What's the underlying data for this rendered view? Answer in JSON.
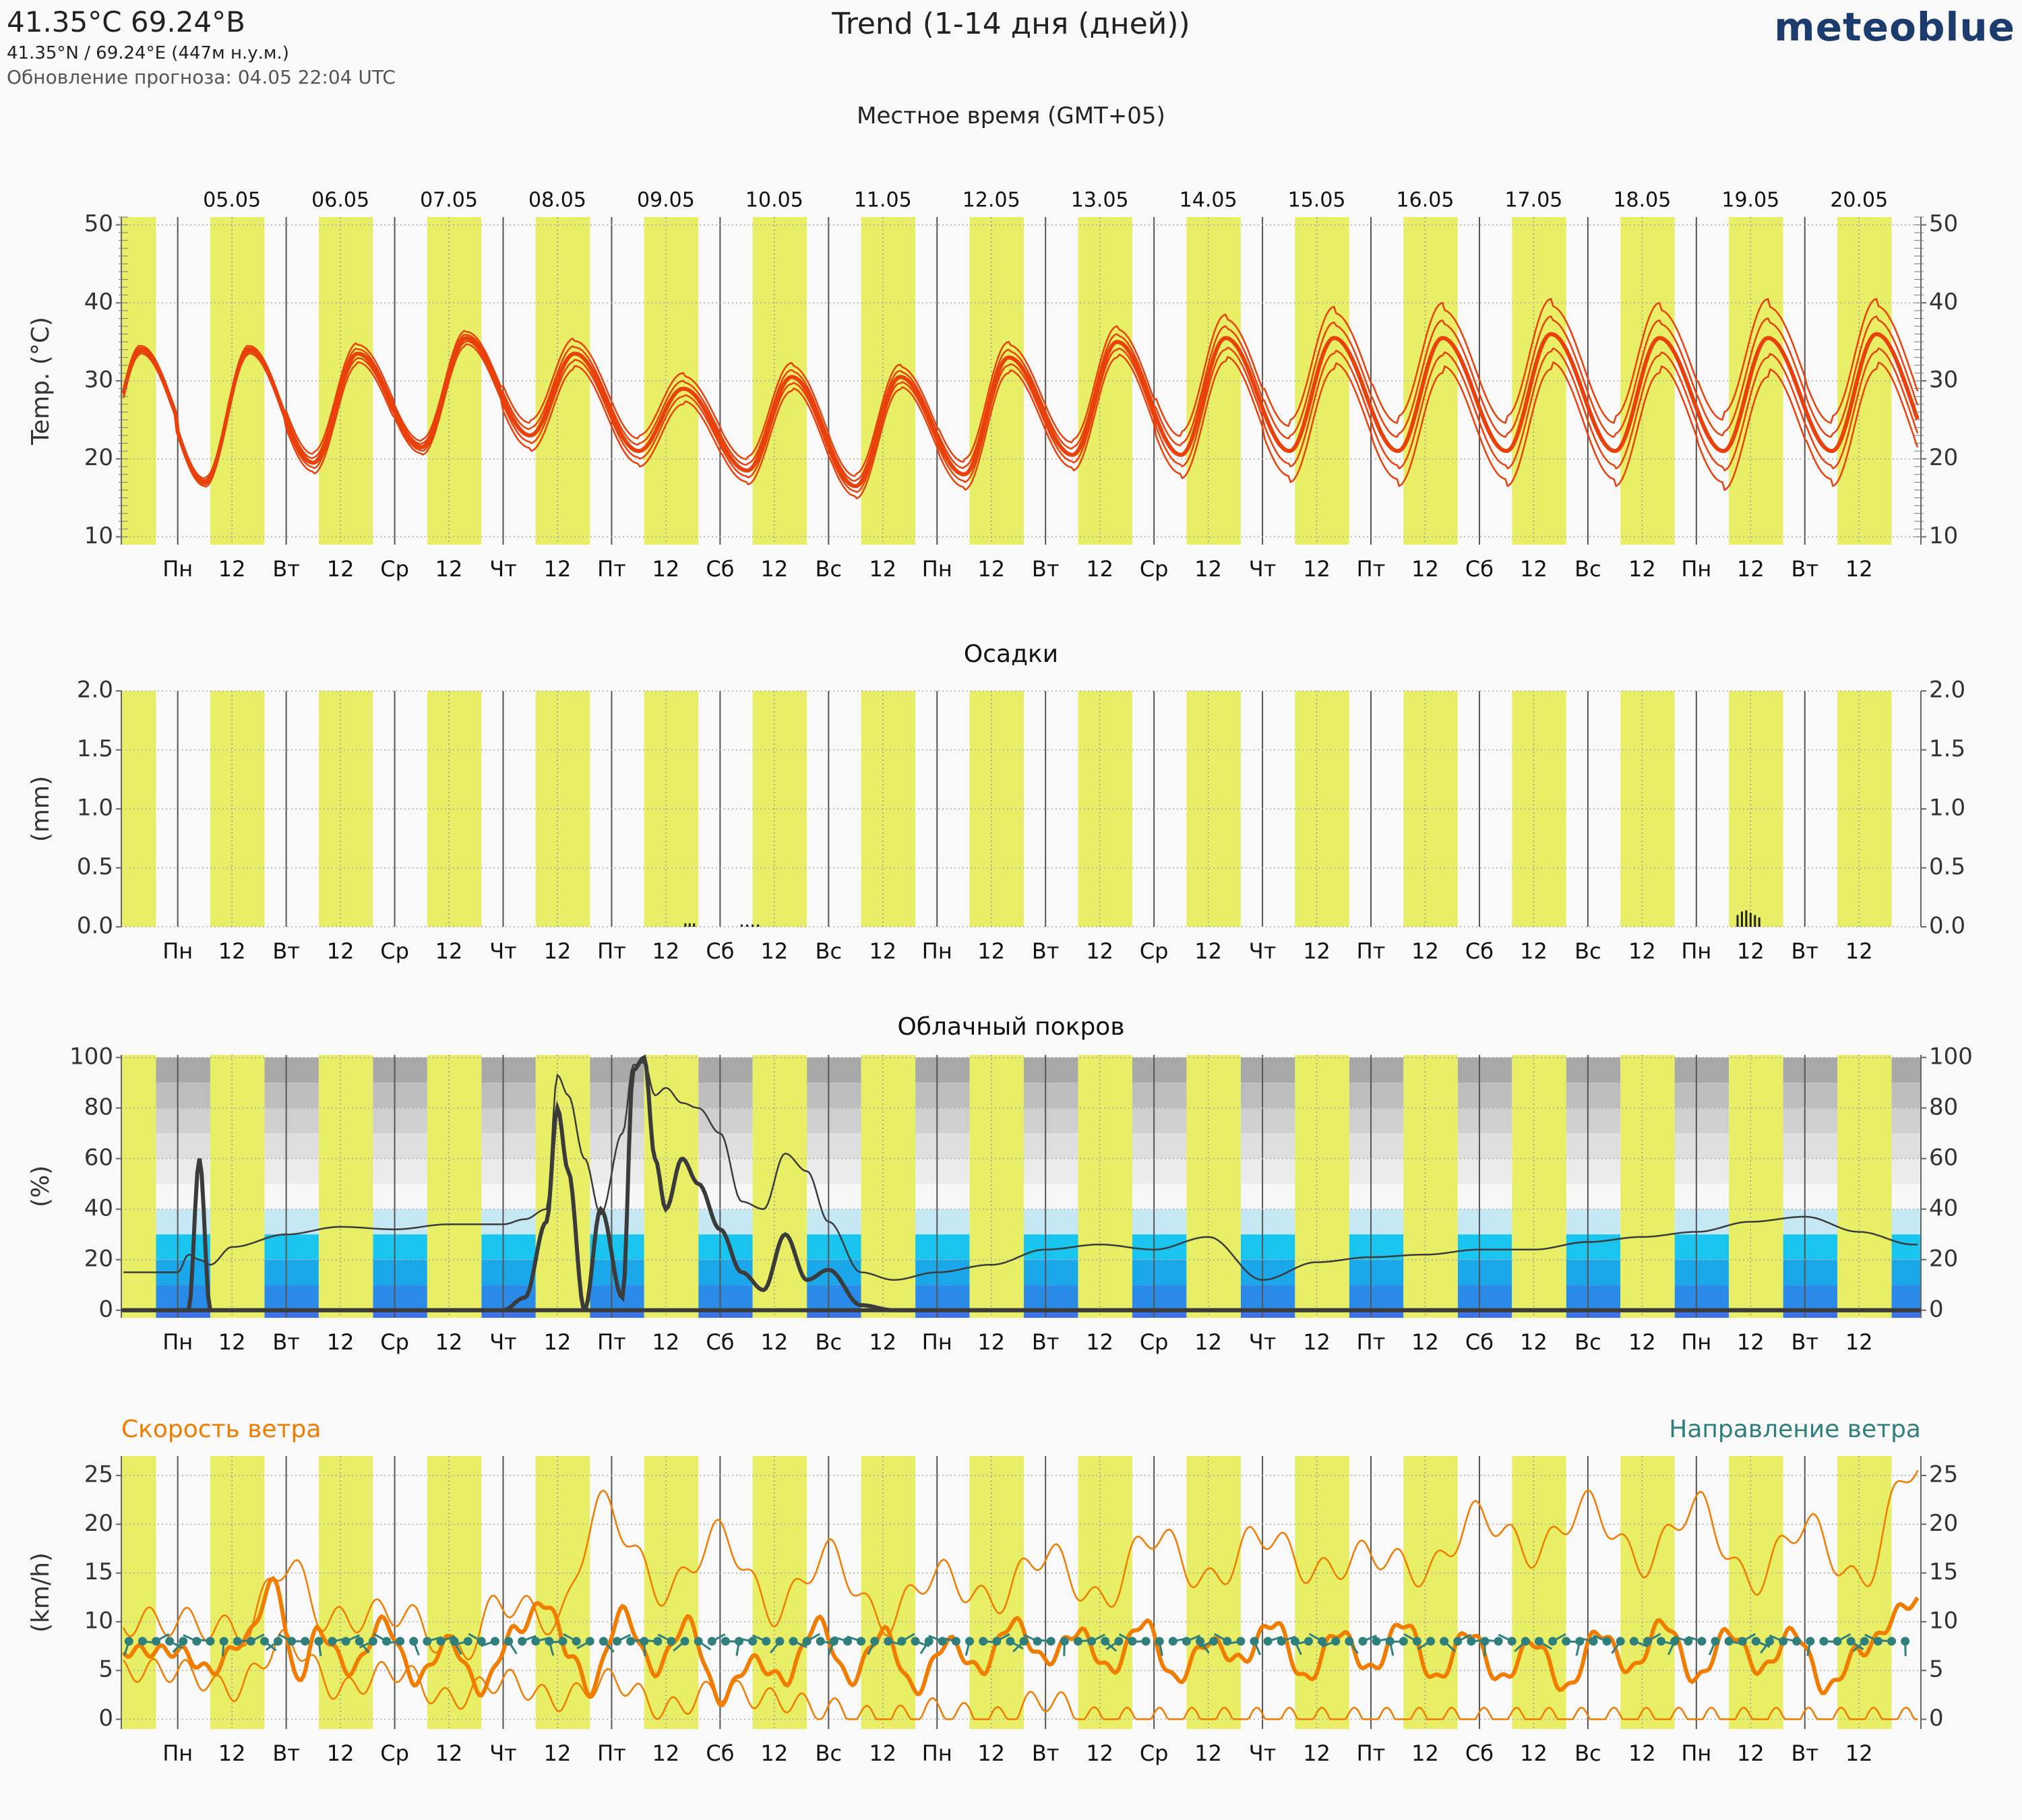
{
  "header": {
    "location": "41.35°C 69.24°В",
    "coordinates": "41.35°N / 69.24°E (447м н.у.м.)",
    "updated": "Обновление прогноза: 04.05 22:04 UTC",
    "title": "Trend (1-14 дня (дней))",
    "logo": "meteoblue",
    "local_time": "Местное время (GMT+05)"
  },
  "colors": {
    "day_band": "#e8ef66",
    "night_band": "#f9f9f9",
    "temperature": "#e8410c",
    "wind_speed": "#f07c00",
    "wind_direction": "#2f7f7c",
    "cloud_line": "#3b3b3b",
    "precip": "#222222"
  },
  "dates": [
    "05.05",
    "06.05",
    "07.05",
    "08.05",
    "09.05",
    "10.05",
    "11.05",
    "12.05",
    "13.05",
    "14.05",
    "15.05",
    "16.05",
    "17.05",
    "18.05",
    "19.05",
    "20.05"
  ],
  "weekdays": [
    "Пн",
    "Вт",
    "Ср",
    "Чт",
    "Пт",
    "Сб",
    "Вс",
    "Пн",
    "Вт",
    "Ср",
    "Чт",
    "Пт",
    "Сб",
    "Вс",
    "Пн",
    "Вт"
  ],
  "noon_label": "12",
  "chart_data": [
    {
      "type": "line",
      "title": "",
      "ylabel": "Temp. (°C)",
      "ylim": [
        9,
        51
      ],
      "yticks": [
        10,
        20,
        30,
        40,
        50
      ],
      "grid": true,
      "x_unit": "days since 05.05 00:00 local",
      "daily_max": [
        34,
        33.5,
        35.5,
        33.5,
        29,
        30.5,
        30.5,
        33,
        35,
        35.5,
        35.5,
        35.5,
        36,
        35.5,
        35.5,
        36
      ],
      "daily_min": [
        17,
        19.5,
        21.5,
        23,
        21,
        18.5,
        16.5,
        18,
        20.5,
        20.5,
        21,
        21,
        21,
        21,
        21,
        21
      ],
      "spread": [
        0.6,
        1.4,
        1.0,
        2.0,
        2.0,
        1.8,
        1.6,
        2.0,
        2.0,
        3.0,
        4.0,
        4.5,
        4.5,
        4.5,
        5.0,
        4.5
      ]
    },
    {
      "type": "bar",
      "title": "Осадки",
      "ylabel": "(mm)",
      "ylim": [
        0,
        2
      ],
      "yticks": [
        0.0,
        0.5,
        1.0,
        1.5,
        2.0
      ],
      "ytick_labels": [
        "0.0",
        "0.5",
        "1.0",
        "1.5",
        "2.0"
      ],
      "x": [
        4.68,
        4.72,
        4.76,
        5.2,
        5.25,
        5.3,
        5.35,
        14.38,
        14.42,
        14.46,
        14.5,
        14.54,
        14.58
      ],
      "values": [
        0.03,
        0.03,
        0.03,
        0.02,
        0.02,
        0.02,
        0.02,
        0.1,
        0.13,
        0.14,
        0.12,
        0.1,
        0.08
      ]
    },
    {
      "type": "line",
      "title": "Облачный покров",
      "ylabel": "(%)",
      "ylim": [
        -3,
        101
      ],
      "yticks": [
        0,
        20,
        40,
        60,
        80,
        100
      ],
      "x": [
        0,
        0.1,
        0.2,
        0.3,
        0.5,
        1.0,
        1.5,
        2.0,
        2.5,
        3.0,
        3.2,
        3.4,
        3.5,
        3.6,
        3.75,
        3.9,
        4.1,
        4.2,
        4.3,
        4.4,
        4.5,
        4.65,
        4.8,
        5.0,
        5.2,
        5.4,
        5.6,
        5.8,
        6.0,
        6.3,
        6.6,
        7.0,
        7.5,
        8.0,
        8.5,
        9.0,
        9.5,
        10.0,
        10.5,
        11.0,
        11.5,
        12.0,
        12.5,
        13.0,
        13.5,
        14.0,
        14.5,
        15.0,
        15.5,
        16.0
      ],
      "series": [
        {
          "values": [
            0,
            0,
            60,
            0,
            0,
            0,
            0,
            0,
            0,
            0,
            5,
            35,
            80,
            55,
            0,
            40,
            5,
            95,
            100,
            60,
            40,
            60,
            50,
            32,
            15,
            8,
            30,
            12,
            16,
            2,
            0,
            0,
            0,
            0,
            0,
            0,
            0,
            0,
            0,
            0,
            0,
            0,
            0,
            0,
            0,
            0,
            0,
            0,
            0,
            0
          ]
        },
        {
          "values": [
            15,
            22,
            20,
            18,
            25,
            30,
            33,
            32,
            34,
            34,
            36,
            40,
            93,
            85,
            60,
            38,
            70,
            97,
            98,
            85,
            88,
            82,
            80,
            70,
            43,
            40,
            62,
            55,
            35,
            15,
            12,
            15,
            18,
            24,
            26,
            24,
            29,
            12,
            19,
            21,
            22,
            24,
            24,
            27,
            29,
            31,
            35,
            37,
            31,
            26
          ]
        }
      ]
    },
    {
      "type": "line",
      "title": "",
      "ylabel": "(km/h)",
      "ylim": [
        -1,
        27
      ],
      "yticks": [
        0,
        5,
        10,
        15,
        20,
        25
      ],
      "annotations": [
        "Скорость ветра",
        "Направление ветра"
      ],
      "series": [
        {
          "name": "Скорость ветра",
          "x": [
            0,
            0.3,
            0.6,
            0.9,
            1.1,
            1.3,
            1.6,
            1.9,
            2.2,
            2.5,
            2.8,
            3.1,
            3.4,
            3.6,
            3.8,
            4.1,
            4.4,
            4.7,
            5.0,
            5.3,
            5.6,
            5.9,
            6.2,
            6.5,
            6.8,
            7.1,
            7.4,
            7.7,
            8.0,
            8.3,
            8.6,
            8.9,
            9.2,
            9.5,
            9.8,
            10.1,
            10.4,
            10.7,
            11.0,
            11.3,
            11.6,
            11.9,
            12.2,
            12.5,
            12.8,
            13.1,
            13.4,
            13.7,
            14.0,
            14.3,
            14.6,
            14.9,
            15.2,
            15.5,
            16.0
          ],
          "values": [
            7,
            5,
            8,
            14,
            4,
            9,
            5,
            10,
            4,
            8,
            3,
            9,
            12,
            7,
            3,
            11,
            5,
            10,
            2,
            6,
            4,
            10,
            4,
            9,
            3,
            8,
            5,
            10,
            6,
            9,
            5,
            10,
            4,
            8,
            6,
            10,
            4,
            9,
            5,
            10,
            4,
            9,
            4,
            8,
            3,
            9,
            5,
            10,
            4,
            9,
            5,
            9,
            3,
            7,
            12
          ]
        },
        {
          "name": "max",
          "x": [
            0,
            0.6,
            1.0,
            1.4,
            2.0,
            2.6,
            3.0,
            3.5,
            3.9,
            4.5,
            5.0,
            5.5,
            6.0,
            6.5,
            7.0,
            7.5,
            8.0,
            8.5,
            9.0,
            9.5,
            10.0,
            10.5,
            11.0,
            11.5,
            12.0,
            12.5,
            13.0,
            13.5,
            14.0,
            14.5,
            15.0,
            15.5,
            16.0
          ],
          "values": [
            10,
            9,
            16,
            10,
            11,
            7,
            12,
            10,
            22,
            13,
            19,
            11,
            17,
            10,
            15,
            12,
            17,
            12,
            19,
            14,
            19,
            15,
            17,
            15,
            21,
            17,
            22,
            16,
            22,
            14,
            20,
            14,
            26
          ]
        },
        {
          "name": "min",
          "x": [
            0,
            0.5,
            1.0,
            1.5,
            2.0,
            2.5,
            3.0,
            3.5,
            4.0,
            4.5,
            5.0,
            5.5,
            6.0,
            6.5,
            7.0,
            7.5,
            8.0,
            8.5,
            9.0,
            9.5,
            10.0,
            10.5,
            11.0,
            11.5,
            12.0,
            12.5,
            13.0,
            13.5,
            14.0,
            14.5,
            15.0,
            15.5,
            16.0
          ],
          "values": [
            5,
            3,
            8,
            3,
            5,
            2,
            4,
            2,
            4,
            1,
            3,
            2,
            1,
            0,
            1,
            0,
            2,
            0,
            0,
            0,
            0,
            0,
            0,
            0,
            0,
            0,
            0,
            0,
            0,
            0,
            0,
            0,
            0
          ]
        }
      ]
    }
  ]
}
